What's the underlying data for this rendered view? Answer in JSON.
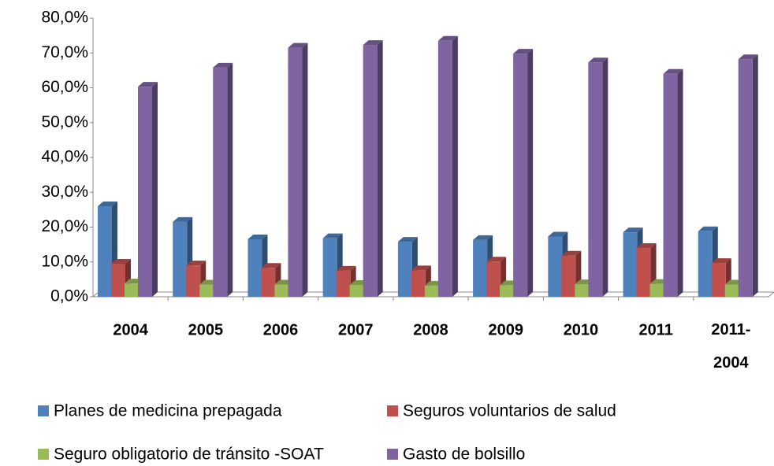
{
  "chart_data": {
    "type": "bar3d",
    "categories": [
      "2004",
      "2005",
      "2006",
      "2007",
      "2008",
      "2009",
      "2010",
      "2011",
      "2011-2004"
    ],
    "series": [
      {
        "name": "Planes de medicina prepagada",
        "color": "#4f81bd",
        "values": [
          26,
          21.5,
          16.5,
          16.8,
          15.8,
          16.3,
          17.3,
          18.5,
          18.8
        ]
      },
      {
        "name": "Seguros voluntarios de salud",
        "color": "#c0504d",
        "values": [
          9.5,
          9,
          8.3,
          7.5,
          7.6,
          10.1,
          11.8,
          14,
          9.7
        ]
      },
      {
        "name": "Seguro obligatorio de tránsito -SOAT",
        "color": "#9bbb59",
        "values": [
          3.8,
          3.5,
          3.5,
          3.4,
          3.2,
          3.3,
          3.6,
          3.7,
          3.5
        ]
      },
      {
        "name": "Gasto de bolsillo",
        "color": "#8064a2",
        "values": [
          60.3,
          65.8,
          71.5,
          72.3,
          73.5,
          69.8,
          67.3,
          64,
          68.2
        ]
      }
    ],
    "ylim": [
      0,
      80
    ],
    "yticks": [
      {
        "value": 0,
        "label": "0,0%"
      },
      {
        "value": 10,
        "label": "10,0%"
      },
      {
        "value": 20,
        "label": "20,0%"
      },
      {
        "value": 30,
        "label": "30,0%"
      },
      {
        "value": 40,
        "label": "40,0%"
      },
      {
        "value": 50,
        "label": "50,0%"
      },
      {
        "value": 60,
        "label": "60,0%"
      },
      {
        "value": 70,
        "label": "70,0%"
      },
      {
        "value": 80,
        "label": "80,0%"
      }
    ]
  }
}
